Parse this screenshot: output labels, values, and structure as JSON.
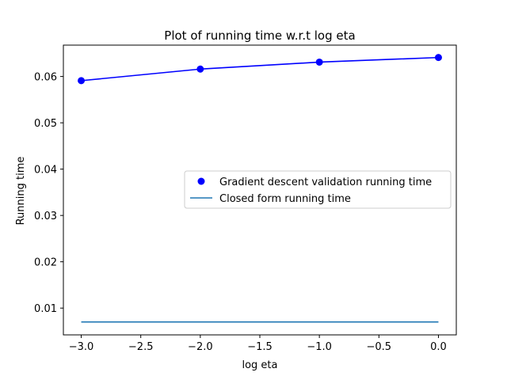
{
  "chart_data": {
    "type": "line",
    "title": "Plot of running time w.r.t log eta",
    "xlabel": "log eta",
    "ylabel": "Running time",
    "xlim": [
      -3.15,
      0.15
    ],
    "ylim": [
      0.00422,
      0.06677
    ],
    "xticks": [
      -3.0,
      -2.5,
      -2.0,
      -1.5,
      -1.0,
      -0.5,
      0.0
    ],
    "xtick_labels": [
      "−3.0",
      "−2.5",
      "−2.0",
      "−1.5",
      "−1.0",
      "−0.5",
      "0.0"
    ],
    "yticks": [
      0.01,
      0.02,
      0.03,
      0.04,
      0.05,
      0.06
    ],
    "ytick_labels": [
      "0.01",
      "0.02",
      "0.03",
      "0.04",
      "0.05",
      "0.06"
    ],
    "grid": false,
    "legend": {
      "placement": "center-right"
    },
    "series": [
      {
        "name": "Gradient descent validation running time",
        "style": "line-with-markers",
        "color": "#0000ff",
        "x": [
          -3.0,
          -2.0,
          -1.0,
          0.0
        ],
        "y": [
          0.0591,
          0.0616,
          0.0631,
          0.0641
        ]
      },
      {
        "name": "Closed form running time",
        "style": "line",
        "color": "#1f77b4",
        "x": [
          -3.0,
          -2.0,
          -1.0,
          0.0
        ],
        "y": [
          0.007,
          0.007,
          0.007,
          0.007
        ]
      }
    ]
  }
}
